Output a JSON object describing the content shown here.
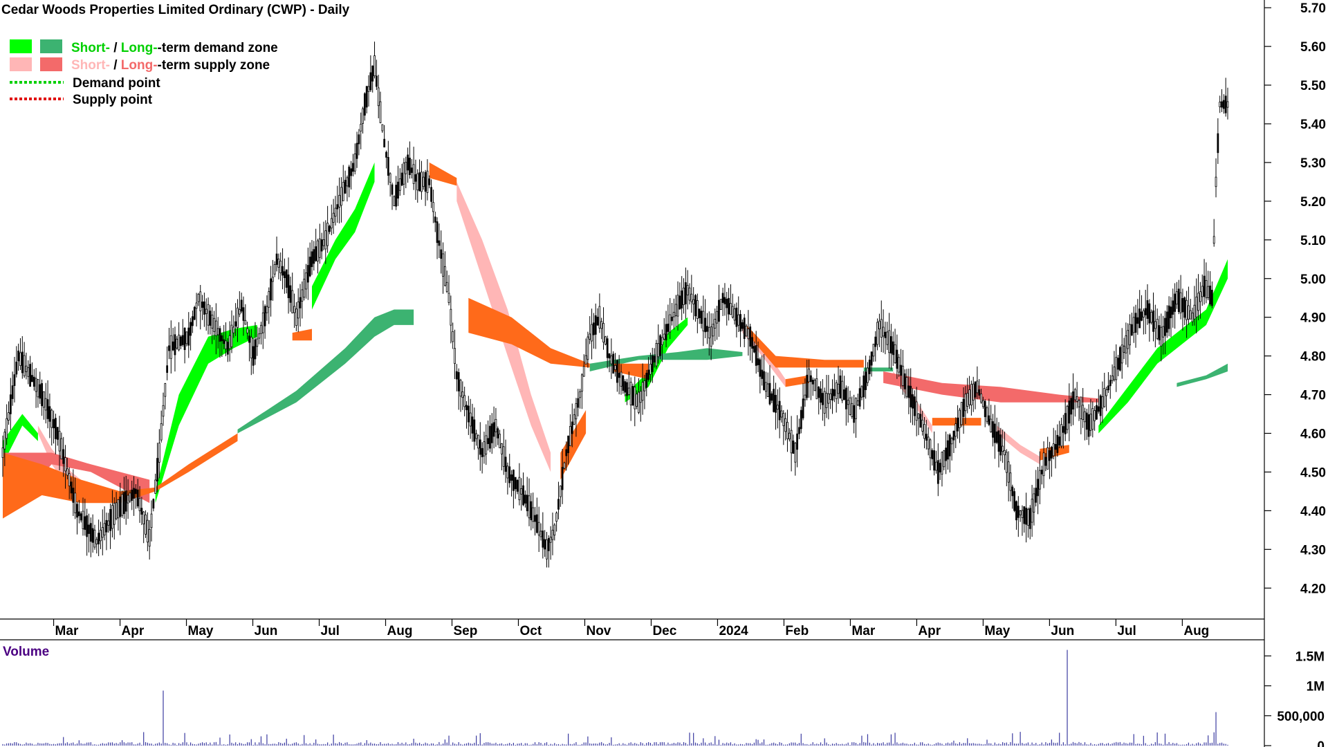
{
  "title": "Cedar Woods Properties Limited Ordinary (CWP) - Daily",
  "legend": {
    "demand_zone": {
      "short": "Short-",
      "sep": " / ",
      "long": "Long-",
      "rest": "-term demand zone"
    },
    "supply_zone": {
      "short": "Short-",
      "sep": " / ",
      "long": "Long-",
      "rest": "-term supply zone"
    },
    "demand_point": "Demand point",
    "supply_point": "Supply point"
  },
  "colors": {
    "short_demand": "#00ff00",
    "long_demand": "#3cb371",
    "short_supply": "#ffb6b6",
    "long_supply": "#f36a6a",
    "orange_zone": "#ff6a1a",
    "demand_point": "#00d000",
    "supply_point": "#e00000",
    "volume_bar": "#3a3aa0",
    "volume_label": "#4b0082"
  },
  "volume_panel": {
    "label": "Volume",
    "axis_ticks": [
      {
        "value": 1500000,
        "label": "1.5M"
      },
      {
        "value": 1000000,
        "label": "1M"
      },
      {
        "value": 500000,
        "label": "500,000"
      },
      {
        "value": 0,
        "label": "0"
      }
    ]
  },
  "chart_data": {
    "type": "candlestick",
    "title": "Cedar Woods Properties Limited Ordinary (CWP) - Daily",
    "x_labels": [
      "Mar",
      "Apr",
      "May",
      "Jun",
      "Jul",
      "Aug",
      "Sep",
      "Oct",
      "Nov",
      "Dec",
      "2024",
      "Feb",
      "Mar",
      "Apr",
      "May",
      "Jun",
      "Jul",
      "Aug"
    ],
    "y_ticks": [
      4.2,
      4.3,
      4.4,
      4.5,
      4.6,
      4.7,
      4.8,
      4.9,
      5.0,
      5.1,
      5.2,
      5.3,
      5.4,
      5.5,
      5.6,
      5.7
    ],
    "ylim": [
      4.12,
      5.72
    ],
    "price_path": [
      [
        0,
        4.55
      ],
      [
        8,
        4.8
      ],
      [
        20,
        4.7
      ],
      [
        28,
        4.6
      ],
      [
        38,
        4.4
      ],
      [
        48,
        4.32
      ],
      [
        58,
        4.4
      ],
      [
        68,
        4.45
      ],
      [
        75,
        4.33
      ],
      [
        80,
        4.55
      ],
      [
        85,
        4.82
      ],
      [
        95,
        4.85
      ],
      [
        100,
        4.95
      ],
      [
        108,
        4.88
      ],
      [
        115,
        4.82
      ],
      [
        122,
        4.93
      ],
      [
        128,
        4.8
      ],
      [
        135,
        4.92
      ],
      [
        140,
        5.05
      ],
      [
        145,
        5.0
      ],
      [
        150,
        4.9
      ],
      [
        158,
        5.05
      ],
      [
        165,
        5.1
      ],
      [
        172,
        5.2
      ],
      [
        180,
        5.3
      ],
      [
        185,
        5.45
      ],
      [
        190,
        5.55
      ],
      [
        195,
        5.35
      ],
      [
        200,
        5.2
      ],
      [
        207,
        5.3
      ],
      [
        212,
        5.25
      ],
      [
        218,
        5.25
      ],
      [
        222,
        5.12
      ],
      [
        228,
        4.95
      ],
      [
        232,
        4.75
      ],
      [
        238,
        4.65
      ],
      [
        245,
        4.55
      ],
      [
        252,
        4.62
      ],
      [
        258,
        4.5
      ],
      [
        265,
        4.45
      ],
      [
        272,
        4.38
      ],
      [
        278,
        4.3
      ],
      [
        282,
        4.35
      ],
      [
        288,
        4.55
      ],
      [
        295,
        4.7
      ],
      [
        300,
        4.85
      ],
      [
        305,
        4.9
      ],
      [
        310,
        4.8
      ],
      [
        318,
        4.72
      ],
      [
        325,
        4.68
      ],
      [
        332,
        4.78
      ],
      [
        338,
        4.85
      ],
      [
        345,
        4.93
      ],
      [
        350,
        4.97
      ],
      [
        355,
        4.92
      ],
      [
        362,
        4.85
      ],
      [
        368,
        4.95
      ],
      [
        375,
        4.9
      ],
      [
        382,
        4.85
      ],
      [
        390,
        4.72
      ],
      [
        398,
        4.65
      ],
      [
        405,
        4.55
      ],
      [
        412,
        4.75
      ],
      [
        420,
        4.68
      ],
      [
        428,
        4.72
      ],
      [
        435,
        4.65
      ],
      [
        442,
        4.75
      ],
      [
        448,
        4.88
      ],
      [
        455,
        4.82
      ],
      [
        462,
        4.72
      ],
      [
        470,
        4.62
      ],
      [
        478,
        4.5
      ],
      [
        485,
        4.58
      ],
      [
        492,
        4.68
      ],
      [
        498,
        4.72
      ],
      [
        505,
        4.62
      ],
      [
        512,
        4.55
      ],
      [
        518,
        4.4
      ],
      [
        525,
        4.38
      ],
      [
        532,
        4.52
      ],
      [
        540,
        4.58
      ],
      [
        548,
        4.7
      ],
      [
        555,
        4.62
      ],
      [
        562,
        4.68
      ],
      [
        570,
        4.78
      ],
      [
        578,
        4.88
      ],
      [
        585,
        4.92
      ],
      [
        592,
        4.85
      ],
      [
        600,
        4.95
      ],
      [
        608,
        4.9
      ],
      [
        614,
        4.98
      ],
      [
        618,
        4.95
      ],
      [
        620,
        5.25
      ],
      [
        622,
        5.45
      ],
      [
        626,
        5.45
      ]
    ],
    "overlays": [
      {
        "name": "Short-term demand zone",
        "color": "#00ff00",
        "segments": [
          [
            [
              0,
              4.52,
              4.58
            ],
            [
              10,
              4.62,
              4.65
            ],
            [
              18,
              4.58,
              4.6
            ]
          ],
          [
            [
              78,
              4.42,
              4.45
            ],
            [
              90,
              4.62,
              4.7
            ],
            [
              105,
              4.78,
              4.85
            ],
            [
              118,
              4.82,
              4.87
            ],
            [
              130,
              4.85,
              4.88
            ]
          ],
          [
            [
              158,
              4.92,
              4.98
            ],
            [
              170,
              5.05,
              5.1
            ],
            [
              180,
              5.12,
              5.18
            ],
            [
              190,
              5.25,
              5.3
            ]
          ],
          [
            [
              318,
              4.68,
              4.7
            ],
            [
              330,
              4.72,
              4.76
            ],
            [
              340,
              4.82,
              4.86
            ],
            [
              350,
              4.88,
              4.9
            ]
          ],
          [
            [
              560,
              4.6,
              4.62
            ],
            [
              575,
              4.68,
              4.72
            ],
            [
              590,
              4.78,
              4.82
            ],
            [
              605,
              4.84,
              4.88
            ],
            [
              615,
              4.88,
              4.92
            ],
            [
              626,
              5.0,
              5.05
            ]
          ]
        ]
      },
      {
        "name": "Long-term demand zone",
        "color": "#3cb371",
        "segments": [
          [
            [
              120,
              4.6,
              4.61
            ],
            [
              150,
              4.68,
              4.71
            ],
            [
              175,
              4.78,
              4.82
            ],
            [
              190,
              4.85,
              4.9
            ],
            [
              200,
              4.88,
              4.92
            ],
            [
              210,
              4.88,
              4.92
            ]
          ],
          [
            [
              300,
              4.76,
              4.78
            ],
            [
              325,
              4.79,
              4.8
            ],
            [
              345,
              4.79,
              4.81
            ],
            [
              360,
              4.79,
              4.82
            ],
            [
              378,
              4.8,
              4.81
            ]
          ],
          [
            [
              440,
              4.76,
              4.77
            ],
            [
              455,
              4.76,
              4.77
            ]
          ],
          [
            [
              600,
              4.72,
              4.73
            ],
            [
              615,
              4.74,
              4.75
            ],
            [
              626,
              4.76,
              4.78
            ]
          ]
        ]
      },
      {
        "name": "Short-term supply zone",
        "color": "#ffb6b6",
        "segments": [
          [
            [
              18,
              4.6,
              4.62
            ],
            [
              25,
              4.52,
              4.56
            ],
            [
              35,
              4.45,
              4.5
            ],
            [
              45,
              4.42,
              4.46
            ]
          ],
          [
            [
              232,
              5.2,
              5.25
            ],
            [
              245,
              5.0,
              5.1
            ],
            [
              258,
              4.8,
              4.92
            ],
            [
              270,
              4.62,
              4.7
            ],
            [
              280,
              4.5,
              4.55
            ]
          ],
          [
            [
              378,
              4.86,
              4.88
            ],
            [
              388,
              4.8,
              4.83
            ],
            [
              400,
              4.72,
              4.74
            ]
          ],
          [
            [
              455,
              4.74,
              4.76
            ],
            [
              465,
              4.68,
              4.7
            ],
            [
              475,
              4.6,
              4.62
            ]
          ],
          [
            [
              508,
              4.6,
              4.62
            ],
            [
              520,
              4.55,
              4.57
            ],
            [
              530,
              4.52,
              4.54
            ]
          ]
        ]
      },
      {
        "name": "Long-term supply zone",
        "color": "#f36a6a",
        "segments": [
          [
            [
              0,
              4.38,
              4.55
            ],
            [
              25,
              4.52,
              4.55
            ],
            [
              45,
              4.5,
              4.52
            ],
            [
              75,
              4.42,
              4.48
            ]
          ],
          [
            [
              450,
              4.73,
              4.76
            ],
            [
              480,
              4.7,
              4.73
            ],
            [
              510,
              4.68,
              4.72
            ],
            [
              540,
              4.68,
              4.7
            ],
            [
              560,
              4.68,
              4.69
            ]
          ]
        ]
      },
      {
        "name": "Orange zone",
        "color": "#ff6a1a",
        "segments": [
          [
            [
              0,
              4.38,
              4.55
            ],
            [
              20,
              4.44,
              4.52
            ],
            [
              40,
              4.42,
              4.48
            ],
            [
              60,
              4.42,
              4.45
            ],
            [
              78,
              4.45,
              4.46
            ],
            [
              95,
              4.5,
              4.52
            ],
            [
              120,
              4.58,
              4.6
            ]
          ],
          [
            [
              148,
              4.84,
              4.86
            ],
            [
              158,
              4.84,
              4.87
            ]
          ],
          [
            [
              218,
              5.26,
              5.3
            ],
            [
              232,
              5.24,
              5.26
            ]
          ],
          [
            [
              238,
              4.86,
              4.95
            ],
            [
              260,
              4.83,
              4.9
            ],
            [
              280,
              4.78,
              4.82
            ],
            [
              300,
              4.77,
              4.78
            ]
          ],
          [
            [
              285,
              4.48,
              4.55
            ],
            [
              298,
              4.6,
              4.66
            ]
          ],
          [
            [
              312,
              4.76,
              4.78
            ],
            [
              330,
              4.74,
              4.78
            ]
          ],
          [
            [
              380,
              4.86,
              4.88
            ],
            [
              395,
              4.77,
              4.8
            ],
            [
              420,
              4.77,
              4.79
            ],
            [
              440,
              4.77,
              4.79
            ]
          ],
          [
            [
              400,
              4.72,
              4.74
            ],
            [
              412,
              4.73,
              4.75
            ]
          ],
          [
            [
              475,
              4.62,
              4.64
            ],
            [
              500,
              4.62,
              4.64
            ]
          ],
          [
            [
              530,
              4.53,
              4.56
            ],
            [
              545,
              4.55,
              4.57
            ]
          ]
        ]
      }
    ],
    "volume": {
      "baseline": 30000,
      "spikes": [
        {
          "day": 82,
          "value": 920000
        },
        {
          "day": 544,
          "value": 1600000
        },
        {
          "day": 620,
          "value": 560000
        },
        {
          "day": 520,
          "value": 230000
        },
        {
          "day": 590,
          "value": 220000
        }
      ]
    }
  }
}
